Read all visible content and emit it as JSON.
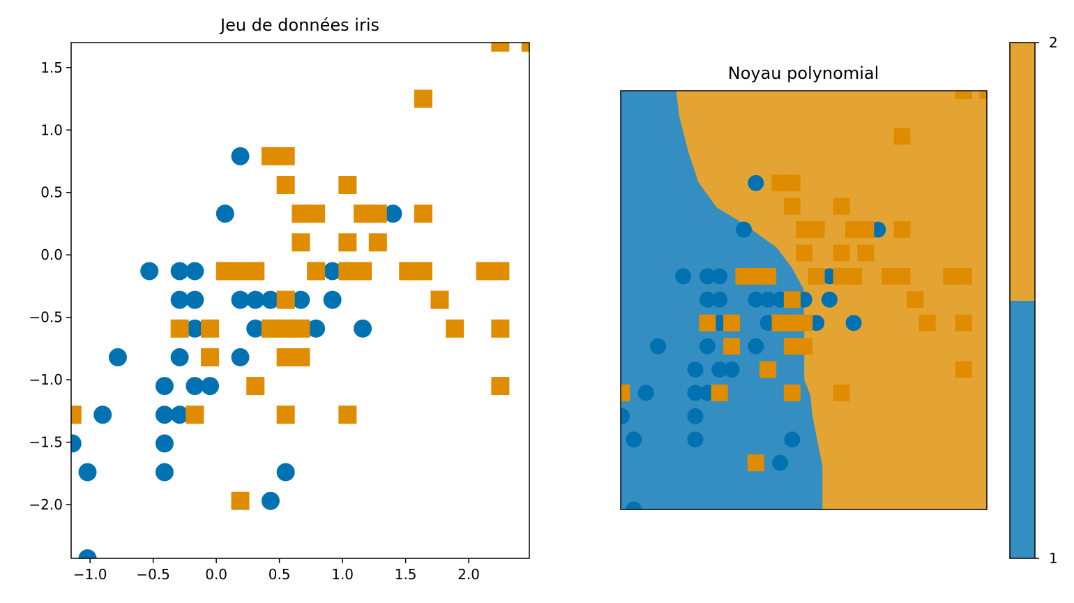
{
  "colors": {
    "class1_marker": "#0072b2",
    "class2_marker": "#e08c00",
    "class1_region": "#348ec1",
    "class2_region": "#e4a433"
  },
  "chart_data": [
    {
      "type": "scatter",
      "title": "Jeu de données iris",
      "xlabel": "",
      "ylabel": "",
      "xlim": [
        -1.15,
        2.48
      ],
      "ylim": [
        -2.43,
        1.7
      ],
      "xticks": [
        -1.0,
        -0.5,
        0.0,
        0.5,
        1.0,
        1.5,
        2.0
      ],
      "xtick_labels": [
        "−1.0",
        "−0.5",
        "0.0",
        "0.5",
        "1.0",
        "1.5",
        "2.0"
      ],
      "yticks": [
        1.5,
        1.0,
        0.5,
        0.0,
        -0.5,
        -1.0,
        -1.5,
        -2.0
      ],
      "ytick_labels": [
        "1.5",
        "1.0",
        "0.5",
        "0.0",
        "−0.5",
        "−1.0",
        "−1.5",
        "−2.0"
      ],
      "series": [
        {
          "marker": "circle",
          "class": 1,
          "points": [
            [
              0.19,
              0.79
            ],
            [
              0.07,
              0.33
            ],
            [
              1.4,
              0.33
            ],
            [
              -0.53,
              -0.13
            ],
            [
              -0.29,
              -0.13
            ],
            [
              -0.17,
              -0.13
            ],
            [
              0.92,
              -0.13
            ],
            [
              -0.29,
              -0.36
            ],
            [
              -0.17,
              -0.36
            ],
            [
              0.19,
              -0.36
            ],
            [
              0.31,
              -0.36
            ],
            [
              0.43,
              -0.36
            ],
            [
              0.67,
              -0.36
            ],
            [
              0.92,
              -0.36
            ],
            [
              -0.17,
              -0.59
            ],
            [
              0.31,
              -0.59
            ],
            [
              0.79,
              -0.59
            ],
            [
              1.16,
              -0.59
            ],
            [
              -0.78,
              -0.82
            ],
            [
              -0.29,
              -0.82
            ],
            [
              0.19,
              -0.82
            ],
            [
              -0.41,
              -1.05
            ],
            [
              -0.17,
              -1.05
            ],
            [
              -0.05,
              -1.05
            ],
            [
              -0.9,
              -1.28
            ],
            [
              -0.41,
              -1.28
            ],
            [
              -0.29,
              -1.28
            ],
            [
              -1.14,
              -1.51
            ],
            [
              -0.41,
              -1.51
            ],
            [
              -1.02,
              -1.74
            ],
            [
              -0.41,
              -1.74
            ],
            [
              0.55,
              -1.74
            ],
            [
              0.43,
              -1.97
            ],
            [
              -1.02,
              -2.43
            ]
          ]
        },
        {
          "marker": "square",
          "class": 2,
          "points": [
            [
              2.25,
              1.7
            ],
            [
              2.49,
              1.7
            ],
            [
              1.64,
              1.25
            ],
            [
              0.43,
              0.79
            ],
            [
              0.55,
              0.79
            ],
            [
              0.55,
              0.56
            ],
            [
              1.04,
              0.56
            ],
            [
              0.67,
              0.33
            ],
            [
              0.79,
              0.33
            ],
            [
              1.16,
              0.33
            ],
            [
              1.28,
              0.33
            ],
            [
              1.64,
              0.33
            ],
            [
              0.67,
              0.1
            ],
            [
              1.04,
              0.1
            ],
            [
              1.28,
              0.1
            ],
            [
              0.07,
              -0.13
            ],
            [
              0.19,
              -0.13
            ],
            [
              0.31,
              -0.13
            ],
            [
              0.79,
              -0.13
            ],
            [
              1.04,
              -0.13
            ],
            [
              1.16,
              -0.13
            ],
            [
              1.52,
              -0.13
            ],
            [
              1.64,
              -0.13
            ],
            [
              2.13,
              -0.13
            ],
            [
              2.25,
              -0.13
            ],
            [
              0.55,
              -0.36
            ],
            [
              1.77,
              -0.36
            ],
            [
              -0.29,
              -0.59
            ],
            [
              -0.05,
              -0.59
            ],
            [
              0.43,
              -0.59
            ],
            [
              0.55,
              -0.59
            ],
            [
              0.67,
              -0.59
            ],
            [
              1.89,
              -0.59
            ],
            [
              2.25,
              -0.59
            ],
            [
              -0.05,
              -0.82
            ],
            [
              0.55,
              -0.82
            ],
            [
              0.67,
              -0.82
            ],
            [
              0.31,
              -1.05
            ],
            [
              2.25,
              -1.05
            ],
            [
              -1.14,
              -1.28
            ],
            [
              -0.17,
              -1.28
            ],
            [
              0.55,
              -1.28
            ],
            [
              1.04,
              -1.28
            ],
            [
              0.19,
              -1.97
            ]
          ]
        }
      ]
    },
    {
      "type": "scatter",
      "title": "Noyau polynomial",
      "xlabel": "",
      "ylabel": "",
      "xlim": [
        -1.15,
        2.48
      ],
      "ylim": [
        -2.43,
        1.7
      ],
      "axis_ticks": "none",
      "decision_boundary": [
        [
          -0.6,
          1.7
        ],
        [
          -0.57,
          1.45
        ],
        [
          -0.48,
          1.1
        ],
        [
          -0.38,
          0.8
        ],
        [
          -0.2,
          0.55
        ],
        [
          0.0,
          0.43
        ],
        [
          0.15,
          0.33
        ],
        [
          0.4,
          0.15
        ],
        [
          0.55,
          -0.05
        ],
        [
          0.66,
          -0.25
        ],
        [
          0.67,
          -0.6
        ],
        [
          0.67,
          -1.15
        ],
        [
          0.73,
          -1.3
        ],
        [
          0.75,
          -1.5
        ],
        [
          0.8,
          -1.75
        ],
        [
          0.85,
          -2.0
        ],
        [
          0.85,
          -2.43
        ]
      ],
      "series": [
        {
          "marker": "circle",
          "class": 1,
          "points": [
            [
              0.19,
              0.79
            ],
            [
              0.07,
              0.33
            ],
            [
              1.4,
              0.33
            ],
            [
              -0.53,
              -0.13
            ],
            [
              -0.29,
              -0.13
            ],
            [
              -0.17,
              -0.13
            ],
            [
              0.92,
              -0.13
            ],
            [
              -0.29,
              -0.36
            ],
            [
              -0.17,
              -0.36
            ],
            [
              0.19,
              -0.36
            ],
            [
              0.31,
              -0.36
            ],
            [
              0.43,
              -0.36
            ],
            [
              0.67,
              -0.36
            ],
            [
              0.92,
              -0.36
            ],
            [
              -0.17,
              -0.59
            ],
            [
              0.31,
              -0.59
            ],
            [
              0.79,
              -0.59
            ],
            [
              1.16,
              -0.59
            ],
            [
              -0.78,
              -0.82
            ],
            [
              -0.29,
              -0.82
            ],
            [
              0.19,
              -0.82
            ],
            [
              -0.41,
              -1.05
            ],
            [
              -0.17,
              -1.05
            ],
            [
              -0.05,
              -1.05
            ],
            [
              -0.9,
              -1.28
            ],
            [
              -0.41,
              -1.28
            ],
            [
              -0.29,
              -1.28
            ],
            [
              -1.14,
              -1.51
            ],
            [
              -0.41,
              -1.51
            ],
            [
              -1.02,
              -1.74
            ],
            [
              -0.41,
              -1.74
            ],
            [
              0.55,
              -1.74
            ],
            [
              0.43,
              -1.97
            ],
            [
              -1.02,
              -2.43
            ]
          ]
        },
        {
          "marker": "square",
          "class": 2,
          "points": [
            [
              2.25,
              1.7
            ],
            [
              2.49,
              1.7
            ],
            [
              1.64,
              1.25
            ],
            [
              0.43,
              0.79
            ],
            [
              0.55,
              0.79
            ],
            [
              0.55,
              0.56
            ],
            [
              1.04,
              0.56
            ],
            [
              0.67,
              0.33
            ],
            [
              0.79,
              0.33
            ],
            [
              1.16,
              0.33
            ],
            [
              1.28,
              0.33
            ],
            [
              1.64,
              0.33
            ],
            [
              0.67,
              0.1
            ],
            [
              1.04,
              0.1
            ],
            [
              1.28,
              0.1
            ],
            [
              0.07,
              -0.13
            ],
            [
              0.19,
              -0.13
            ],
            [
              0.31,
              -0.13
            ],
            [
              0.79,
              -0.13
            ],
            [
              1.04,
              -0.13
            ],
            [
              1.16,
              -0.13
            ],
            [
              1.52,
              -0.13
            ],
            [
              1.64,
              -0.13
            ],
            [
              2.13,
              -0.13
            ],
            [
              2.25,
              -0.13
            ],
            [
              0.55,
              -0.36
            ],
            [
              1.77,
              -0.36
            ],
            [
              -0.29,
              -0.59
            ],
            [
              -0.05,
              -0.59
            ],
            [
              0.43,
              -0.59
            ],
            [
              0.55,
              -0.59
            ],
            [
              0.67,
              -0.59
            ],
            [
              1.89,
              -0.59
            ],
            [
              2.25,
              -0.59
            ],
            [
              -0.05,
              -0.82
            ],
            [
              0.55,
              -0.82
            ],
            [
              0.67,
              -0.82
            ],
            [
              0.31,
              -1.05
            ],
            [
              2.25,
              -1.05
            ],
            [
              -1.14,
              -1.28
            ],
            [
              -0.17,
              -1.28
            ],
            [
              0.55,
              -1.28
            ],
            [
              1.04,
              -1.28
            ],
            [
              0.19,
              -1.97
            ]
          ]
        }
      ]
    },
    {
      "type": "colorbar",
      "tick_labels": [
        "2",
        "1"
      ],
      "levels": [
        {
          "value": 1,
          "color": "#348ec1"
        },
        {
          "value": 2,
          "color": "#e4a433"
        }
      ]
    }
  ]
}
